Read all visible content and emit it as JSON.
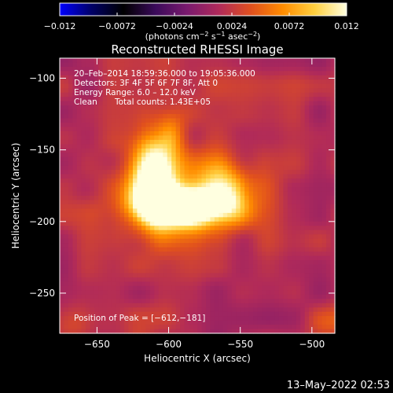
{
  "colorbar": {
    "min": -0.012,
    "max": 0.012,
    "tick_labels": [
      "−0.012",
      "−0.0072",
      "−0.0024",
      "0.0024",
      "0.0072",
      "0.012"
    ],
    "tick_values": [
      -0.012,
      -0.0072,
      -0.0024,
      0.0024,
      0.0072,
      0.012
    ],
    "units_prefix": "(photons cm",
    "units_exp1": "−2",
    "units_mid": " s",
    "units_exp2": "−1",
    "units_mid2": " asec",
    "units_exp3": "−2",
    "units_suffix": ")",
    "colormap": [
      "#0000ff",
      "#000066",
      "#000000",
      "#3a0a5a",
      "#7a1a6e",
      "#b02a5a",
      "#e0501e",
      "#ff8c00",
      "#ffd040",
      "#ffffe0"
    ]
  },
  "title": "Reconstructed RHESSI Image",
  "annotations": {
    "time_range": "20–Feb–2014 18:59:36.000 to 19:05:36.000",
    "detectors": "Detectors: 3F 4F 5F 6F 7F 8F, Att 0",
    "energy_range": "Energy Range: 6.0 – 12.0 keV",
    "clean_label": "Clean",
    "total_counts": "Total counts: 1.43E+05",
    "peak_position": "Position of Peak = [−612,−181]"
  },
  "footer_date": "13–May–2022 02:53",
  "chart_data": {
    "type": "heatmap",
    "title": "Reconstructed RHESSI Image",
    "xlabel": "Heliocentric X (arcsec)",
    "ylabel": "Heliocentric Y (arcsec)",
    "xlim": [
      -676,
      -484
    ],
    "ylim": [
      -278,
      -86
    ],
    "x_ticks": [
      -650,
      -600,
      -550,
      -500
    ],
    "y_ticks": [
      -100,
      -150,
      -200,
      -250
    ],
    "x_tick_labels": [
      "−650",
      "−600",
      "−550",
      "−500"
    ],
    "y_tick_labels": [
      "−100",
      "−150",
      "−200",
      "−250"
    ],
    "peak": [
      -612,
      -181
    ],
    "color_scale_range": [
      -0.012,
      0.012
    ],
    "sources": [
      {
        "x": -610,
        "y": -170,
        "sx": 10,
        "sy": 20,
        "amp": 0.0125
      },
      {
        "x": -605,
        "y": -188,
        "sx": 14,
        "sy": 9,
        "amp": 0.0105
      },
      {
        "x": -585,
        "y": -191,
        "sx": 16,
        "sy": 9,
        "amp": 0.0095
      },
      {
        "x": -565,
        "y": -182,
        "sx": 12,
        "sy": 12,
        "amp": 0.0075
      },
      {
        "x": -600,
        "y": -178,
        "sx": 30,
        "sy": 22,
        "amp": 0.0045
      },
      {
        "x": -598,
        "y": -140,
        "sx": 7,
        "sy": 10,
        "amp": 0.0045
      },
      {
        "x": -555,
        "y": -180,
        "sx": 14,
        "sy": 16,
        "amp": 0.0035
      }
    ]
  }
}
